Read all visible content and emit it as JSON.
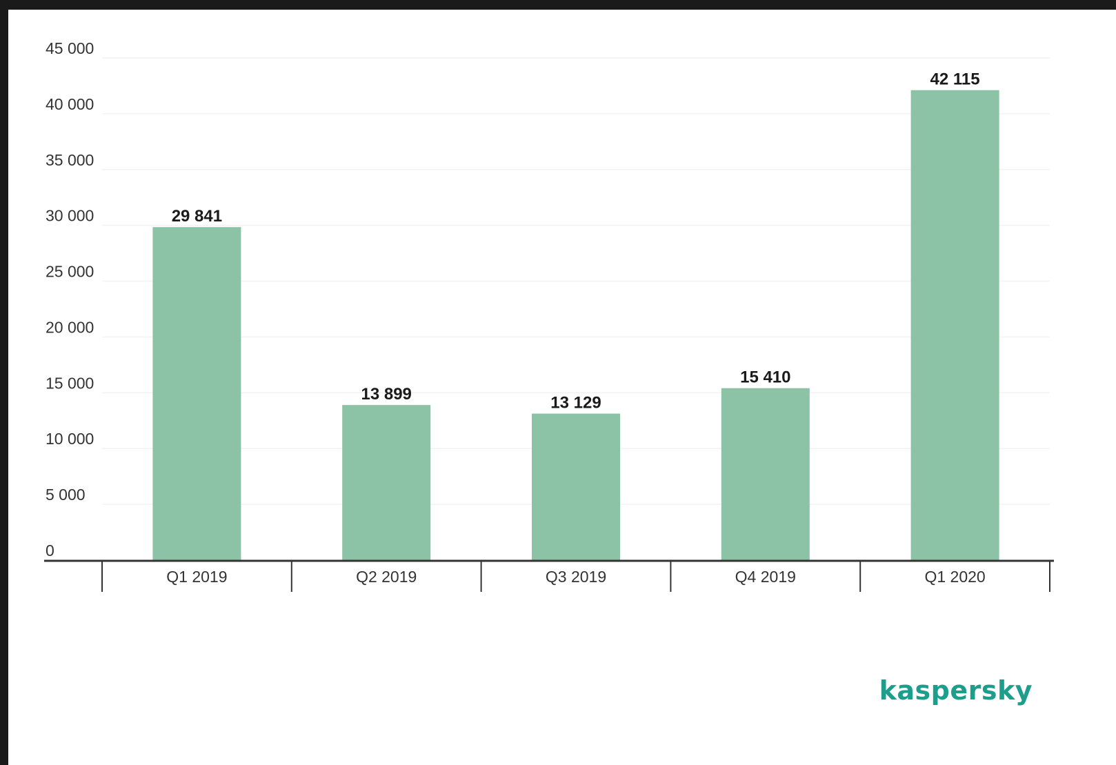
{
  "colors": {
    "bar": "#8cc2a5",
    "brand": "#1d9e8c",
    "axis": "#333333",
    "grid": "#f2f2f2"
  },
  "brand": {
    "logo_text": "kaspersky"
  },
  "chart_data": {
    "type": "bar",
    "title": "",
    "xlabel": "",
    "ylabel": "",
    "ylim": [
      0,
      45000
    ],
    "y_ticks": [
      0,
      5000,
      10000,
      15000,
      20000,
      25000,
      30000,
      35000,
      40000,
      45000
    ],
    "y_tick_labels": [
      "0",
      "5 000",
      "10 000",
      "15 000",
      "20 000",
      "25 000",
      "30 000",
      "35 000",
      "40 000",
      "45 000"
    ],
    "categories": [
      "Q1 2019",
      "Q2 2019",
      "Q3 2019",
      "Q4 2019",
      "Q1 2020"
    ],
    "values": [
      29841,
      13899,
      13129,
      15410,
      42115
    ],
    "value_labels": [
      "29 841",
      "13 899",
      "13 129",
      "15 410",
      "42 115"
    ],
    "grid": true,
    "legend": "none"
  }
}
